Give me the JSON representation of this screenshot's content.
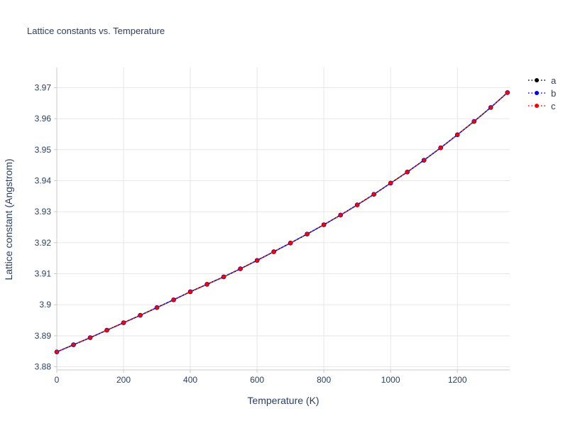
{
  "title": "Lattice constants vs. Temperature",
  "chart_data": {
    "type": "line",
    "title": "Lattice constants vs. Temperature",
    "xlabel": "Temperature (K)",
    "ylabel": "Lattice constant (Angstrom)",
    "xlim": [
      0,
      1357
    ],
    "ylim": [
      3.879,
      3.9765
    ],
    "grid": true,
    "legend_position": "top-right",
    "background": "#ffffff",
    "grid_color": "#e6e6e6",
    "axis_line_color": "#c8c8c8",
    "text_color": "#2a3f5f",
    "line_style": "dotted",
    "x_ticks": [
      0,
      200,
      400,
      600,
      800,
      1000,
      1200
    ],
    "x_tick_labels": [
      "0",
      "200",
      "400",
      "600",
      "800",
      "1000",
      "1200"
    ],
    "y_ticks": [
      3.88,
      3.89,
      3.9,
      3.91,
      3.92,
      3.93,
      3.94,
      3.95,
      3.96,
      3.97
    ],
    "y_tick_labels": [
      "3.88",
      "3.89",
      "3.9",
      "3.91",
      "3.92",
      "3.93",
      "3.94",
      "3.95",
      "3.96",
      "3.97"
    ],
    "x": [
      0,
      50,
      100,
      150,
      200,
      250,
      300,
      350,
      400,
      450,
      500,
      550,
      600,
      650,
      700,
      750,
      800,
      850,
      900,
      950,
      1000,
      1050,
      1100,
      1150,
      1200,
      1250,
      1300,
      1350
    ],
    "series": [
      {
        "name": "a",
        "color": "#000000",
        "marker": "circle",
        "values": [
          3.8848,
          3.8871,
          3.8894,
          3.8918,
          3.8942,
          3.8966,
          3.8991,
          3.9016,
          3.9042,
          3.9066,
          3.909,
          3.9116,
          3.9143,
          3.9171,
          3.9199,
          3.9228,
          3.9258,
          3.9289,
          3.9322,
          3.9356,
          3.9392,
          3.9428,
          3.9466,
          3.9506,
          3.9548,
          3.9591,
          3.9636,
          3.9684
        ]
      },
      {
        "name": "b",
        "color": "#0000ff",
        "marker": "circle",
        "values": [
          3.8848,
          3.8871,
          3.8894,
          3.8918,
          3.8942,
          3.8966,
          3.8991,
          3.9016,
          3.9042,
          3.9066,
          3.909,
          3.9116,
          3.9143,
          3.9171,
          3.9199,
          3.9228,
          3.9258,
          3.9289,
          3.9322,
          3.9356,
          3.9392,
          3.9428,
          3.9466,
          3.9506,
          3.9548,
          3.9591,
          3.9636,
          3.9684
        ]
      },
      {
        "name": "c",
        "color": "#ff0000",
        "marker": "circle",
        "values": [
          3.8848,
          3.8871,
          3.8894,
          3.8918,
          3.8942,
          3.8966,
          3.8991,
          3.9016,
          3.9042,
          3.9066,
          3.909,
          3.9116,
          3.9143,
          3.9171,
          3.9199,
          3.9228,
          3.9258,
          3.9289,
          3.9322,
          3.9356,
          3.9392,
          3.9428,
          3.9466,
          3.9506,
          3.9548,
          3.9591,
          3.9636,
          3.9684
        ]
      }
    ]
  }
}
